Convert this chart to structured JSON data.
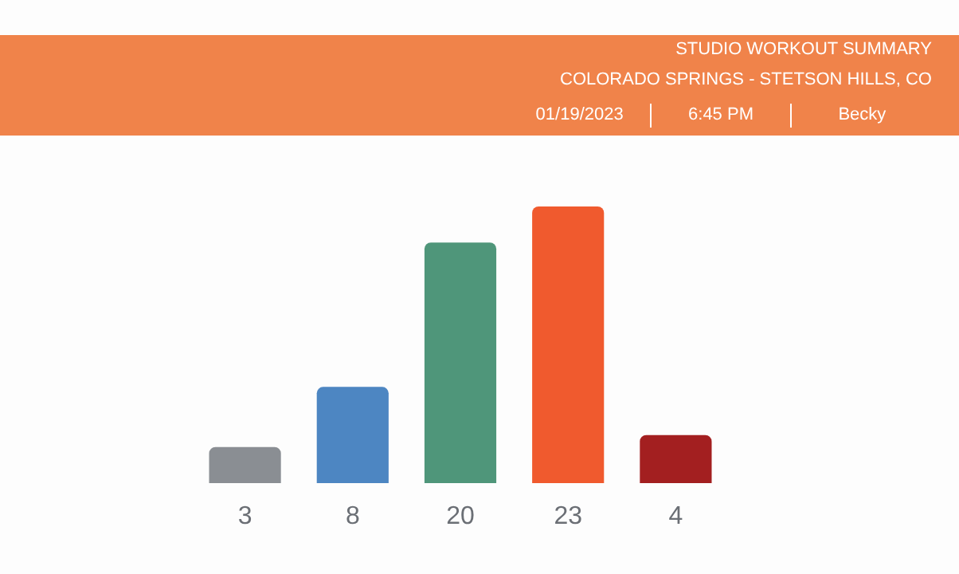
{
  "chart_data": {
    "type": "bar",
    "title": "STUDIO WORKOUT SUMMARY",
    "subtitle": "COLORADO SPRINGS - STETSON HILLS, CO",
    "annotations": [
      "01/19/2023",
      "6:45 PM",
      "Becky"
    ],
    "categories": [
      null,
      null,
      null,
      null,
      null
    ],
    "values": [
      3,
      8,
      20,
      23,
      4
    ],
    "colors": [
      "#8a8e93",
      "#4d86c2",
      "#4f967a",
      "#f05a2e",
      "#a31f20"
    ],
    "data_labels": true
  }
}
